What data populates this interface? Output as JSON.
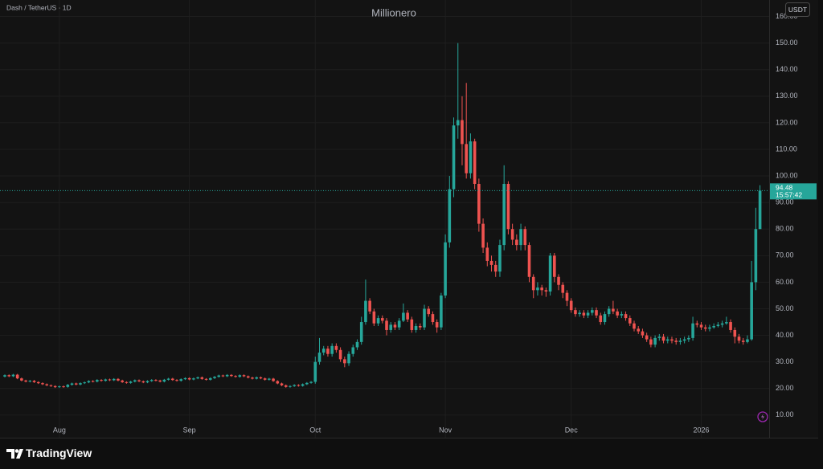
{
  "chart_data": {
    "type": "candlestick",
    "title": "Millionero",
    "symbol": "Dash / TetherUS · 1D",
    "currency": "USDT",
    "countdown": "15:57:42",
    "brand": "TradingView",
    "up_color": "#26a69a",
    "down_color": "#ef5350",
    "grid": true,
    "ylim": [
      3,
      165
    ],
    "yticks": [
      {
        "value": 10,
        "label": "10.00"
      },
      {
        "value": 20,
        "label": "20.00"
      },
      {
        "value": 30,
        "label": "30.00"
      },
      {
        "value": 40,
        "label": "40.00"
      },
      {
        "value": 50,
        "label": "50.00"
      },
      {
        "value": 60,
        "label": "60.00"
      },
      {
        "value": 70,
        "label": "70.00"
      },
      {
        "value": 80,
        "label": "80.00"
      },
      {
        "value": 90,
        "label": "90.00"
      },
      {
        "value": 100,
        "label": "100.00"
      },
      {
        "value": 110,
        "label": "110.00"
      },
      {
        "value": 120,
        "label": "120.00"
      },
      {
        "value": 130,
        "label": "130.00"
      },
      {
        "value": 140,
        "label": "140.00"
      },
      {
        "value": 150,
        "label": "150.00"
      },
      {
        "value": 160,
        "label": "160.00"
      }
    ],
    "categories": [
      null,
      null,
      null,
      null,
      null,
      null,
      null,
      null,
      null,
      null,
      null,
      null,
      null,
      "Aug",
      null,
      null,
      null,
      null,
      null,
      null,
      null,
      null,
      null,
      null,
      null,
      null,
      null,
      null,
      null,
      null,
      null,
      null,
      null,
      null,
      null,
      null,
      null,
      null,
      null,
      null,
      null,
      null,
      null,
      null,
      "Sep",
      null,
      null,
      null,
      null,
      null,
      null,
      null,
      null,
      null,
      null,
      null,
      null,
      null,
      null,
      null,
      null,
      null,
      null,
      null,
      null,
      null,
      null,
      null,
      null,
      null,
      null,
      null,
      null,
      null,
      "Oct",
      null,
      null,
      null,
      null,
      null,
      null,
      null,
      null,
      null,
      null,
      null,
      null,
      null,
      null,
      null,
      null,
      null,
      null,
      null,
      null,
      null,
      null,
      null,
      null,
      null,
      null,
      null,
      null,
      null,
      null,
      "Nov",
      null,
      null,
      null,
      null,
      null,
      null,
      null,
      null,
      null,
      null,
      null,
      null,
      null,
      null,
      null,
      null,
      null,
      null,
      null,
      null,
      null,
      null,
      null,
      null,
      null,
      null,
      null,
      null,
      null,
      "Dec",
      null,
      null,
      null,
      null,
      null,
      null,
      null,
      null,
      null,
      null,
      null,
      null,
      null,
      null,
      null,
      null,
      null,
      null,
      null,
      null,
      null,
      null,
      null,
      null,
      null,
      null,
      null,
      null,
      null,
      null,
      "2026",
      null,
      null,
      null,
      null,
      null,
      null,
      null,
      null,
      null,
      null,
      null,
      null,
      null,
      null
    ],
    "open": [
      24.5,
      25.0,
      24.6,
      25.2,
      23.8,
      23.0,
      22.6,
      22.9,
      22.4,
      22.0,
      21.6,
      21.2,
      20.9,
      20.5,
      20.8,
      20.6,
      21.4,
      21.9,
      21.5,
      22.0,
      22.3,
      22.8,
      22.6,
      23.2,
      22.9,
      23.4,
      23.1,
      23.6,
      23.0,
      22.4,
      22.1,
      22.6,
      23.1,
      22.7,
      22.3,
      22.8,
      23.2,
      23.0,
      22.6,
      23.3,
      23.7,
      23.2,
      22.9,
      23.5,
      23.9,
      23.4,
      23.8,
      24.2,
      23.6,
      23.3,
      23.9,
      24.4,
      24.9,
      24.6,
      25.1,
      24.7,
      24.4,
      25.0,
      24.6,
      24.1,
      23.7,
      24.2,
      23.8,
      23.3,
      23.7,
      22.8,
      21.9,
      21.2,
      20.6,
      20.9,
      21.3,
      21.0,
      21.6,
      22.1,
      22.5,
      30.0,
      33.5,
      35.0,
      33.0,
      36.0,
      34.5,
      31.0,
      29.5,
      33.0,
      35.5,
      37.5,
      45.0,
      53.0,
      49.0,
      44.5,
      46.5,
      45.5,
      42.0,
      44.0,
      43.0,
      45.5,
      48.5,
      46.0,
      42.0,
      43.5,
      43.0,
      50.0,
      48.0,
      45.0,
      43.0,
      55,
      75,
      95,
      119,
      121,
      112,
      101,
      113,
      97,
      82,
      73,
      68,
      66.5,
      64,
      74,
      97,
      80,
      76,
      74,
      80,
      74,
      62,
      57,
      58,
      57,
      56.5,
      70,
      62,
      59,
      56,
      53,
      49.5,
      48,
      48.5,
      47.5,
      48.5,
      49.5,
      47.5,
      45,
      48,
      50,
      49,
      47.5,
      48,
      46.5,
      44.5,
      42.5,
      41.5,
      40,
      38.5,
      36.5,
      39,
      39.5,
      38,
      38.5,
      38,
      37.5,
      38,
      38.5,
      39,
      44.5,
      44,
      43,
      42.5,
      43,
      43.5,
      44,
      44.5,
      45,
      42,
      39.5,
      38,
      37.5,
      38.5,
      60,
      80
    ],
    "high": [
      25.3,
      25.3,
      25.5,
      25.5,
      24.1,
      23.3,
      23.2,
      23.2,
      22.7,
      22.3,
      21.9,
      21.5,
      21.2,
      21.1,
      21.1,
      21.7,
      22.2,
      22.2,
      22.3,
      22.6,
      23.1,
      23.1,
      23.5,
      23.5,
      23.7,
      23.7,
      23.9,
      23.9,
      23.3,
      22.7,
      22.9,
      23.4,
      23.4,
      23.0,
      23.1,
      23.5,
      23.5,
      23.3,
      23.6,
      24.0,
      24.0,
      23.5,
      23.8,
      24.2,
      24.2,
      24.1,
      24.5,
      24.5,
      23.9,
      24.2,
      24.7,
      25.2,
      25.2,
      25.4,
      25.4,
      25.0,
      25.3,
      25.3,
      24.9,
      24.4,
      24.5,
      24.5,
      24.1,
      24.0,
      24.0,
      23.1,
      22.2,
      21.5,
      21.2,
      21.6,
      21.6,
      21.9,
      22.4,
      22.8,
      32,
      39,
      36,
      36,
      37,
      37,
      35.5,
      32,
      34,
      36.5,
      38.5,
      47,
      61,
      54,
      50,
      47.5,
      47.5,
      46.5,
      45,
      45,
      46.5,
      52,
      49.5,
      47,
      44.5,
      44.5,
      51.5,
      51,
      49,
      46,
      56,
      78,
      100,
      122,
      150,
      130,
      135,
      116,
      114,
      99,
      84,
      75,
      70,
      68,
      76,
      104,
      98,
      82,
      78,
      82,
      81,
      75,
      63,
      60,
      59,
      58,
      71,
      71,
      63,
      60,
      57,
      54,
      50.5,
      49.5,
      49.5,
      49.5,
      50.5,
      50.5,
      48.5,
      49,
      51,
      53,
      50,
      49,
      49,
      47.5,
      45.5,
      43.5,
      42.5,
      41,
      39.5,
      40,
      40.5,
      40.5,
      39.5,
      39.5,
      39,
      39,
      39.5,
      40,
      47,
      45.5,
      45,
      44,
      44,
      44.5,
      45,
      45.5,
      47,
      46,
      43,
      40.5,
      39,
      40,
      68,
      88,
      96.5
    ],
    "low": [
      24.2,
      24.3,
      24.3,
      23.5,
      22.7,
      22.3,
      22.3,
      22.1,
      21.7,
      21.3,
      20.9,
      20.6,
      20.2,
      20.2,
      20.3,
      20.3,
      21.1,
      21.2,
      21.2,
      21.7,
      22.0,
      22.3,
      22.3,
      22.6,
      22.6,
      22.8,
      22.8,
      22.7,
      22.1,
      21.8,
      21.8,
      22.3,
      22.4,
      22.0,
      22.0,
      22.5,
      22.7,
      22.3,
      22.3,
      23.0,
      22.9,
      22.6,
      22.6,
      23.2,
      23.1,
      23.1,
      23.5,
      23.3,
      23.0,
      23.0,
      23.6,
      24.1,
      24.3,
      24.3,
      24.4,
      24.1,
      24.1,
      24.3,
      23.8,
      23.4,
      23.4,
      23.5,
      23.0,
      23.0,
      22.5,
      21.6,
      20.9,
      20.3,
      20.3,
      20.6,
      20.7,
      20.7,
      21.3,
      21.8,
      21.8,
      29,
      32.5,
      32,
      32,
      33.5,
      30,
      28,
      28.5,
      32,
      34.5,
      36.5,
      44,
      48,
      43.5,
      43.5,
      44.5,
      40,
      41,
      42,
      42,
      45,
      45,
      41,
      41,
      42,
      42,
      47,
      44,
      41,
      42,
      54,
      73,
      92,
      114,
      104,
      99,
      99,
      95,
      79,
      71,
      66,
      64,
      62,
      62,
      72,
      78,
      74,
      72,
      72,
      72,
      60,
      54,
      55,
      55,
      54.5,
      55,
      60,
      57,
      54,
      51,
      48.5,
      47,
      47,
      46.5,
      46.5,
      47.5,
      46.5,
      44,
      44,
      47,
      48,
      46.5,
      46.5,
      45.5,
      43.5,
      41.5,
      40.5,
      39,
      37.5,
      35.5,
      35.5,
      38,
      37,
      37,
      37,
      36.5,
      36.5,
      37,
      37.5,
      38,
      43,
      42,
      41.5,
      41.5,
      42.5,
      43,
      43,
      44,
      41,
      37,
      37,
      36.5,
      37,
      38,
      57,
      80
    ],
    "close": [
      25.0,
      24.6,
      25.2,
      23.8,
      23.0,
      22.6,
      22.9,
      22.4,
      22.0,
      21.6,
      21.2,
      20.9,
      20.5,
      20.8,
      20.6,
      21.4,
      21.9,
      21.5,
      22.0,
      22.3,
      22.8,
      22.6,
      23.2,
      22.9,
      23.4,
      23.1,
      23.6,
      23.0,
      22.4,
      22.1,
      22.6,
      23.1,
      22.7,
      22.3,
      22.8,
      23.2,
      23.0,
      22.6,
      23.3,
      23.7,
      23.2,
      22.9,
      23.5,
      23.9,
      23.4,
      23.8,
      24.2,
      23.6,
      23.3,
      23.9,
      24.4,
      24.9,
      24.6,
      25.1,
      24.7,
      24.4,
      25.0,
      24.6,
      24.1,
      23.7,
      24.2,
      23.8,
      23.3,
      23.7,
      22.8,
      21.9,
      21.2,
      20.6,
      20.9,
      21.3,
      21.0,
      21.6,
      22.1,
      22.5,
      30.0,
      33.5,
      35.0,
      33.0,
      36.0,
      34.5,
      31.0,
      29.5,
      33.0,
      35.5,
      37.5,
      45.0,
      53.0,
      49.0,
      44.5,
      46.5,
      45.5,
      42.0,
      44.0,
      43.0,
      45.5,
      48.5,
      46.0,
      42.0,
      43.5,
      43.0,
      50.0,
      48.0,
      45.0,
      43.0,
      55.0,
      75,
      95,
      119,
      121,
      112,
      101,
      113,
      97,
      82,
      73,
      68,
      66.5,
      64,
      74,
      97,
      80,
      76,
      74,
      80,
      74,
      62,
      57,
      58,
      57,
      56.5,
      70,
      62,
      59,
      56,
      53,
      49.5,
      48,
      48.5,
      47.5,
      48.5,
      49.5,
      47.5,
      45,
      48,
      50,
      49,
      47.5,
      48,
      46.5,
      44.5,
      42.5,
      41.5,
      40,
      38.5,
      36.5,
      39,
      39.5,
      38,
      38.5,
      38,
      37.5,
      38,
      38.5,
      39,
      44.5,
      44,
      43,
      42.5,
      43,
      43.5,
      44,
      44.5,
      45,
      42,
      39.5,
      38,
      37.5,
      38.5,
      60,
      80,
      94.48
    ]
  }
}
